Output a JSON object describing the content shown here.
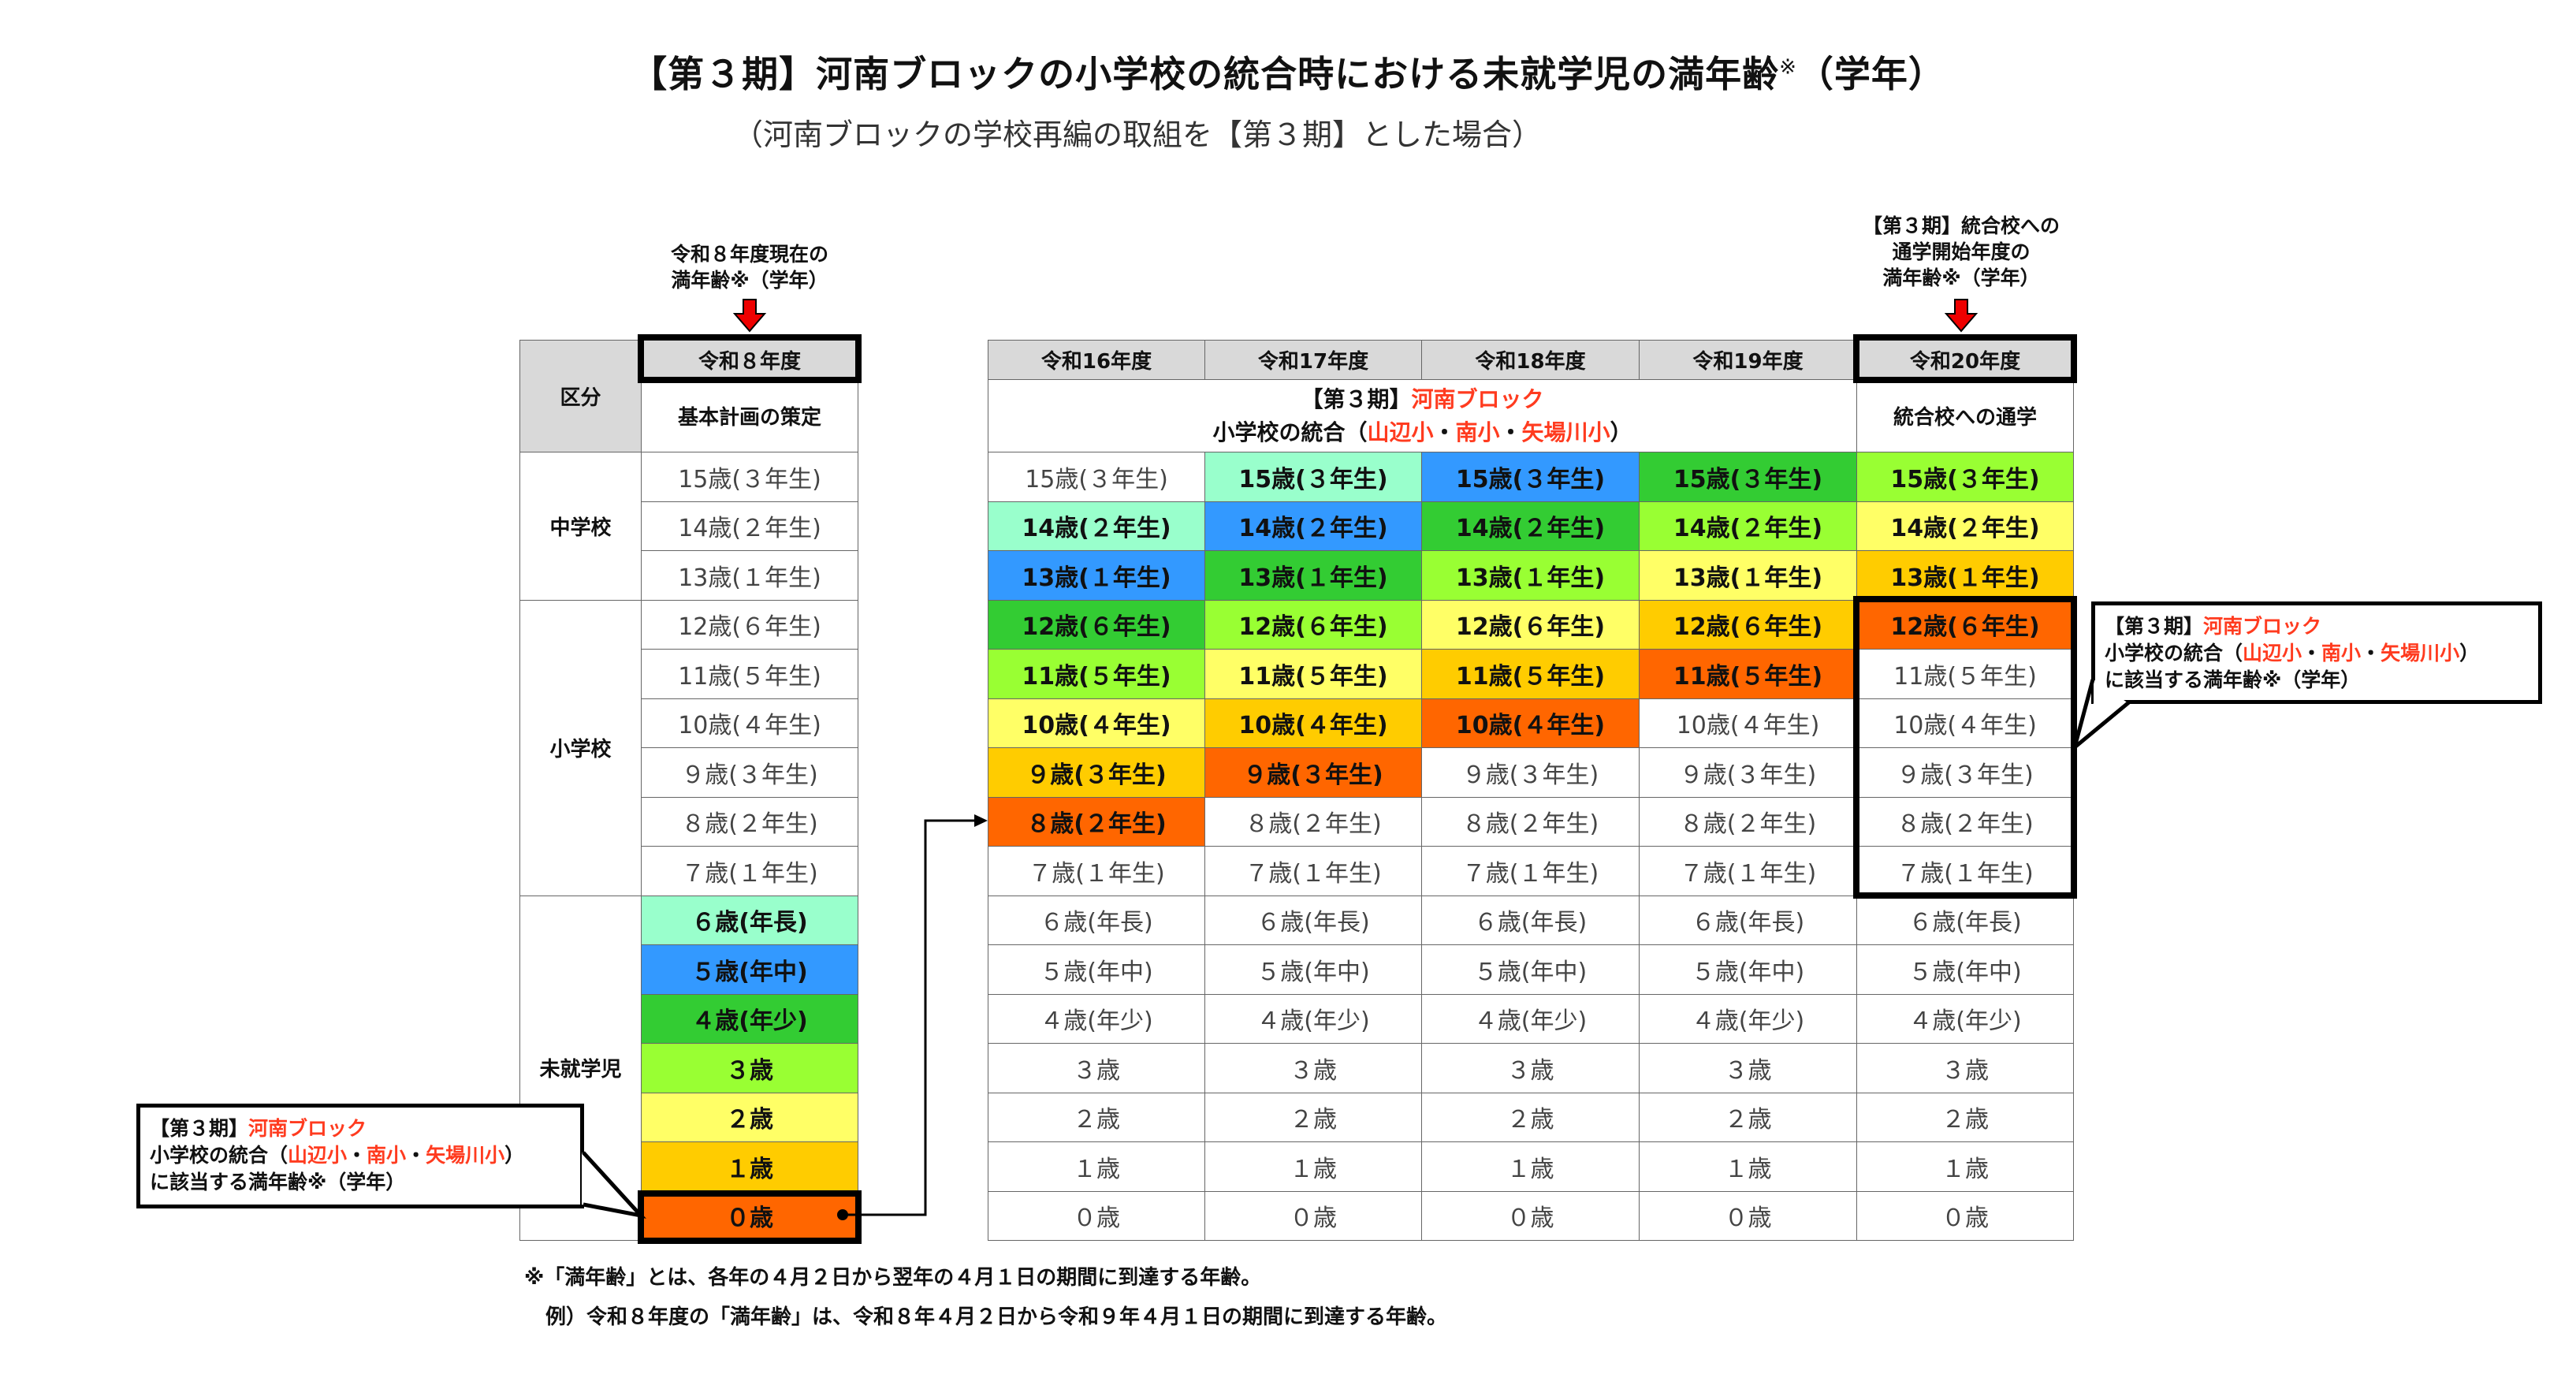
{
  "title": "【第３期】河南ブロックの小学校の統合時における未就学児の満年齢",
  "title_mark": "※",
  "title_suffix": "（学年）",
  "subtitle": "（河南ブロックの学校再編の取組を【第３期】とした場合）",
  "left_note": [
    "令和８年度現在の",
    "満年齢※（学年）"
  ],
  "right_note": [
    "【第３期】統合校への",
    "通学開始年度の",
    "満年齢※（学年）"
  ],
  "colors": {
    "aqua": "#99ffcc",
    "blue": "#3399ff",
    "green": "#33cc33",
    "yellowgreen": "#99ff33",
    "yellow": "#ffff66",
    "orange": "#ffcc00",
    "darkorange": "#ff6600",
    "header": "#d9d9d9",
    "accent_red": "#ff3b1f"
  },
  "left_table": {
    "category_header": "区分",
    "year": "令和８年度",
    "phase": "基本計画の策定",
    "categories": [
      "中学校",
      "小学校",
      "未就学児"
    ],
    "cells": [
      "15歳(３年生)",
      "14歳(２年生)",
      "13歳(１年生)",
      "12歳(６年生)",
      "11歳(５年生)",
      "10歳(４年生)",
      "９歳(３年生)",
      "８歳(２年生)",
      "７歳(１年生)",
      "６歳(年長)",
      "５歳(年中)",
      "４歳(年少)",
      "３歳",
      "２歳",
      "１歳",
      "０歳"
    ],
    "highlight": [
      null,
      null,
      null,
      null,
      null,
      null,
      null,
      null,
      null,
      "aqua",
      "blue",
      "green",
      "yellowgreen",
      "yellow",
      "orange",
      "darkorange"
    ]
  },
  "right_table": {
    "years": [
      "令和16年度",
      "令和17年度",
      "令和18年度",
      "令和19年度",
      "令和20年度"
    ],
    "phase": {
      "prefix": "【第３期】",
      "block": "河南ブロック",
      "line2_prefix": "小学校の統合（",
      "schools": [
        "山辺小",
        "南小",
        "矢場川小"
      ],
      "separator": "・",
      "line2_suffix": "）"
    },
    "commute": "統合校への通学",
    "cells": [
      "15歳(３年生)",
      "14歳(２年生)",
      "13歳(１年生)",
      "12歳(６年生)",
      "11歳(５年生)",
      "10歳(４年生)",
      "９歳(３年生)",
      "８歳(２年生)",
      "７歳(１年生)",
      "６歳(年長)",
      "５歳(年中)",
      "４歳(年少)",
      "３歳",
      "２歳",
      "１歳",
      "０歳"
    ],
    "highlight": [
      [
        null,
        "aqua",
        "blue",
        "green",
        "yellowgreen",
        "yellow",
        "orange",
        "darkorange",
        null,
        null,
        null,
        null,
        null,
        null,
        null,
        null
      ],
      [
        "aqua",
        "blue",
        "green",
        "yellowgreen",
        "yellow",
        "orange",
        "darkorange",
        null,
        null,
        null,
        null,
        null,
        null,
        null,
        null,
        null
      ],
      [
        "blue",
        "green",
        "yellowgreen",
        "yellow",
        "orange",
        "darkorange",
        null,
        null,
        null,
        null,
        null,
        null,
        null,
        null,
        null,
        null
      ],
      [
        "green",
        "yellowgreen",
        "yellow",
        "orange",
        "darkorange",
        null,
        null,
        null,
        null,
        null,
        null,
        null,
        null,
        null,
        null,
        null
      ],
      [
        "yellowgreen",
        "yellow",
        "orange",
        "darkorange",
        null,
        null,
        null,
        null,
        null,
        null,
        null,
        null,
        null,
        null,
        null,
        null
      ]
    ]
  },
  "callout": {
    "line1_prefix": "【第３期】",
    "line1_block": "河南ブロック",
    "line2_prefix": "小学校の統合（",
    "schools": [
      "山辺小",
      "南小",
      "矢場川小"
    ],
    "separator": "・",
    "line2_suffix": "）",
    "line3": "に該当する満年齢※（学年）"
  },
  "footnotes": [
    "※「満年齢」とは、各年の４月２日から翌年の４月１日の期間に到達する年齢。",
    "例）令和８年度の「満年齢」は、令和８年４月２日から令和９年４月１日の期間に到達する年齢。"
  ]
}
